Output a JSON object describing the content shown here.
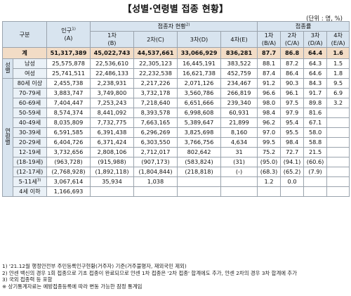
{
  "title": "【성별·연령별 접종 현황】",
  "unit": "(단위 : 명, %)",
  "headers": {
    "gubun": "구분",
    "population": "인구",
    "population_sup": "1)",
    "population_sub": "(A)",
    "vaccinated": "접종자 현황",
    "vaccinated_sup": "2)",
    "rate": "접종률",
    "dose": [
      {
        "label": "1차",
        "sub": "(B)"
      },
      {
        "label": "2차(C)",
        "sub": ""
      },
      {
        "label": "3차(D)",
        "sub": ""
      },
      {
        "label": "4차(E)",
        "sub": ""
      }
    ],
    "rate_cols": [
      {
        "label": "1차",
        "sub": "(B/A)"
      },
      {
        "label": "2차",
        "sub": "(C/A)"
      },
      {
        "label": "3차",
        "sub": "(D/A)"
      },
      {
        "label": "4차",
        "sub": "(E/A)"
      }
    ]
  },
  "total": {
    "label": "계",
    "pop": "51,317,389",
    "d1": "45,022,743",
    "d2": "44,537,661",
    "d3": "33,066,929",
    "d4": "836,281",
    "r1": "87.7",
    "r2": "86.8",
    "r3": "64.4",
    "r4": "1.6"
  },
  "sex_group": "성별",
  "sex_rows": [
    {
      "label": "남성",
      "pop": "25,575,878",
      "d1": "22,536,610",
      "d2": "22,305,123",
      "d3": "16,445,191",
      "d4": "383,522",
      "r1": "88.1",
      "r2": "87.2",
      "r3": "64.3",
      "r4": "1.5"
    },
    {
      "label": "여성",
      "pop": "25,741,511",
      "d1": "22,486,133",
      "d2": "22,232,538",
      "d3": "16,621,738",
      "d4": "452,759",
      "r1": "87.4",
      "r2": "86.4",
      "r3": "64.6",
      "r4": "1.8"
    }
  ],
  "age_group": "연령별",
  "age_rows": [
    {
      "label": "80세 이상",
      "pop": "2,455,738",
      "d1": "2,238,931",
      "d2": "2,217,226",
      "d3": "2,071,126",
      "d4": "234,467",
      "r1": "91.2",
      "r2": "90.3",
      "r3": "84.3",
      "r4": "9.5"
    },
    {
      "label": "70-79세",
      "pop": "3,883,747",
      "d1": "3,749,800",
      "d2": "3,732,178",
      "d3": "3,560,786",
      "d4": "266,819",
      "r1": "96.6",
      "r2": "96.1",
      "r3": "91.7",
      "r4": "6.9"
    },
    {
      "label": "60-69세",
      "pop": "7,404,447",
      "d1": "7,253,243",
      "d2": "7,218,640",
      "d3": "6,651,666",
      "d4": "239,340",
      "r1": "98.0",
      "r2": "97.5",
      "r3": "89.8",
      "r4": "3.2"
    },
    {
      "label": "50-59세",
      "pop": "8,574,374",
      "d1": "8,441,092",
      "d2": "8,393,578",
      "d3": "6,998,608",
      "d4": "60,931",
      "r1": "98.4",
      "r2": "97.9",
      "r3": "81.6",
      "r4": ""
    },
    {
      "label": "40-49세",
      "pop": "8,035,809",
      "d1": "7,732,775",
      "d2": "7,663,165",
      "d3": "5,389,647",
      "d4": "21,899",
      "r1": "96.2",
      "r2": "95.4",
      "r3": "67.1",
      "r4": ""
    },
    {
      "label": "30-39세",
      "pop": "6,591,585",
      "d1": "6,391,438",
      "d2": "6,296,269",
      "d3": "3,825,698",
      "d4": "8,160",
      "r1": "97.0",
      "r2": "95.5",
      "r3": "58.0",
      "r4": ""
    },
    {
      "label": "20-29세",
      "pop": "6,404,726",
      "d1": "6,371,424",
      "d2": "6,303,550",
      "d3": "3,766,756",
      "d4": "4,634",
      "r1": "99.5",
      "r2": "98.4",
      "r3": "58.8",
      "r4": ""
    },
    {
      "label": "12-19세",
      "pop": "3,732,656",
      "d1": "2,808,106",
      "d2": "2,712,017",
      "d3": "802,642",
      "d4": "31",
      "r1": "75.2",
      "r2": "72.7",
      "r3": "21.5",
      "r4": ""
    },
    {
      "label": "(18-19세)",
      "pop": "(963,728)",
      "d1": "(915,988)",
      "d2": "(907,173)",
      "d3": "(583,824)",
      "d4": "(31)",
      "r1": "(95.0)",
      "r2": "(94.1)",
      "r3": "(60.6)",
      "r4": ""
    },
    {
      "label": "(12-17세)",
      "pop": "(2,768,928)",
      "d1": "(1,892,118)",
      "d2": "(1,804,844)",
      "d3": "(218,818)",
      "d4": "(-)",
      "r1": "(68.3)",
      "r2": "(65.2)",
      "r3": "(7.9)",
      "r4": ""
    },
    {
      "label": "5-11세",
      "label_sup": "3)",
      "pop": "3,067,614",
      "d1": "35,934",
      "d2": "1,038",
      "d3": "",
      "d4": "",
      "r1": "1.2",
      "r2": "0.0",
      "r3": "",
      "r4": ""
    },
    {
      "label": "4세 이하",
      "pop": "1,166,693",
      "d1": "",
      "d2": "",
      "d3": "",
      "d4": "",
      "r1": "",
      "r2": "",
      "r3": "",
      "r4": ""
    }
  ],
  "notes": [
    "1) '21.12월 행정안전부 주민등록인구현황(거주자) 기준(거주불명자, 재외국민 제외)",
    "2) 얀센 백신의 경우 1회 접종으로 기초 접종이 완료되므로 얀센 1차 접종은 '2차 접종' 합계에도 추가, 얀센 2차의 경우 3차 합계에 추가",
    "3) 국외 접종력 등 포함",
    "※ 상기통계자료는 예방접종등록에 따라 변동 가능한 잠정 통계임"
  ]
}
